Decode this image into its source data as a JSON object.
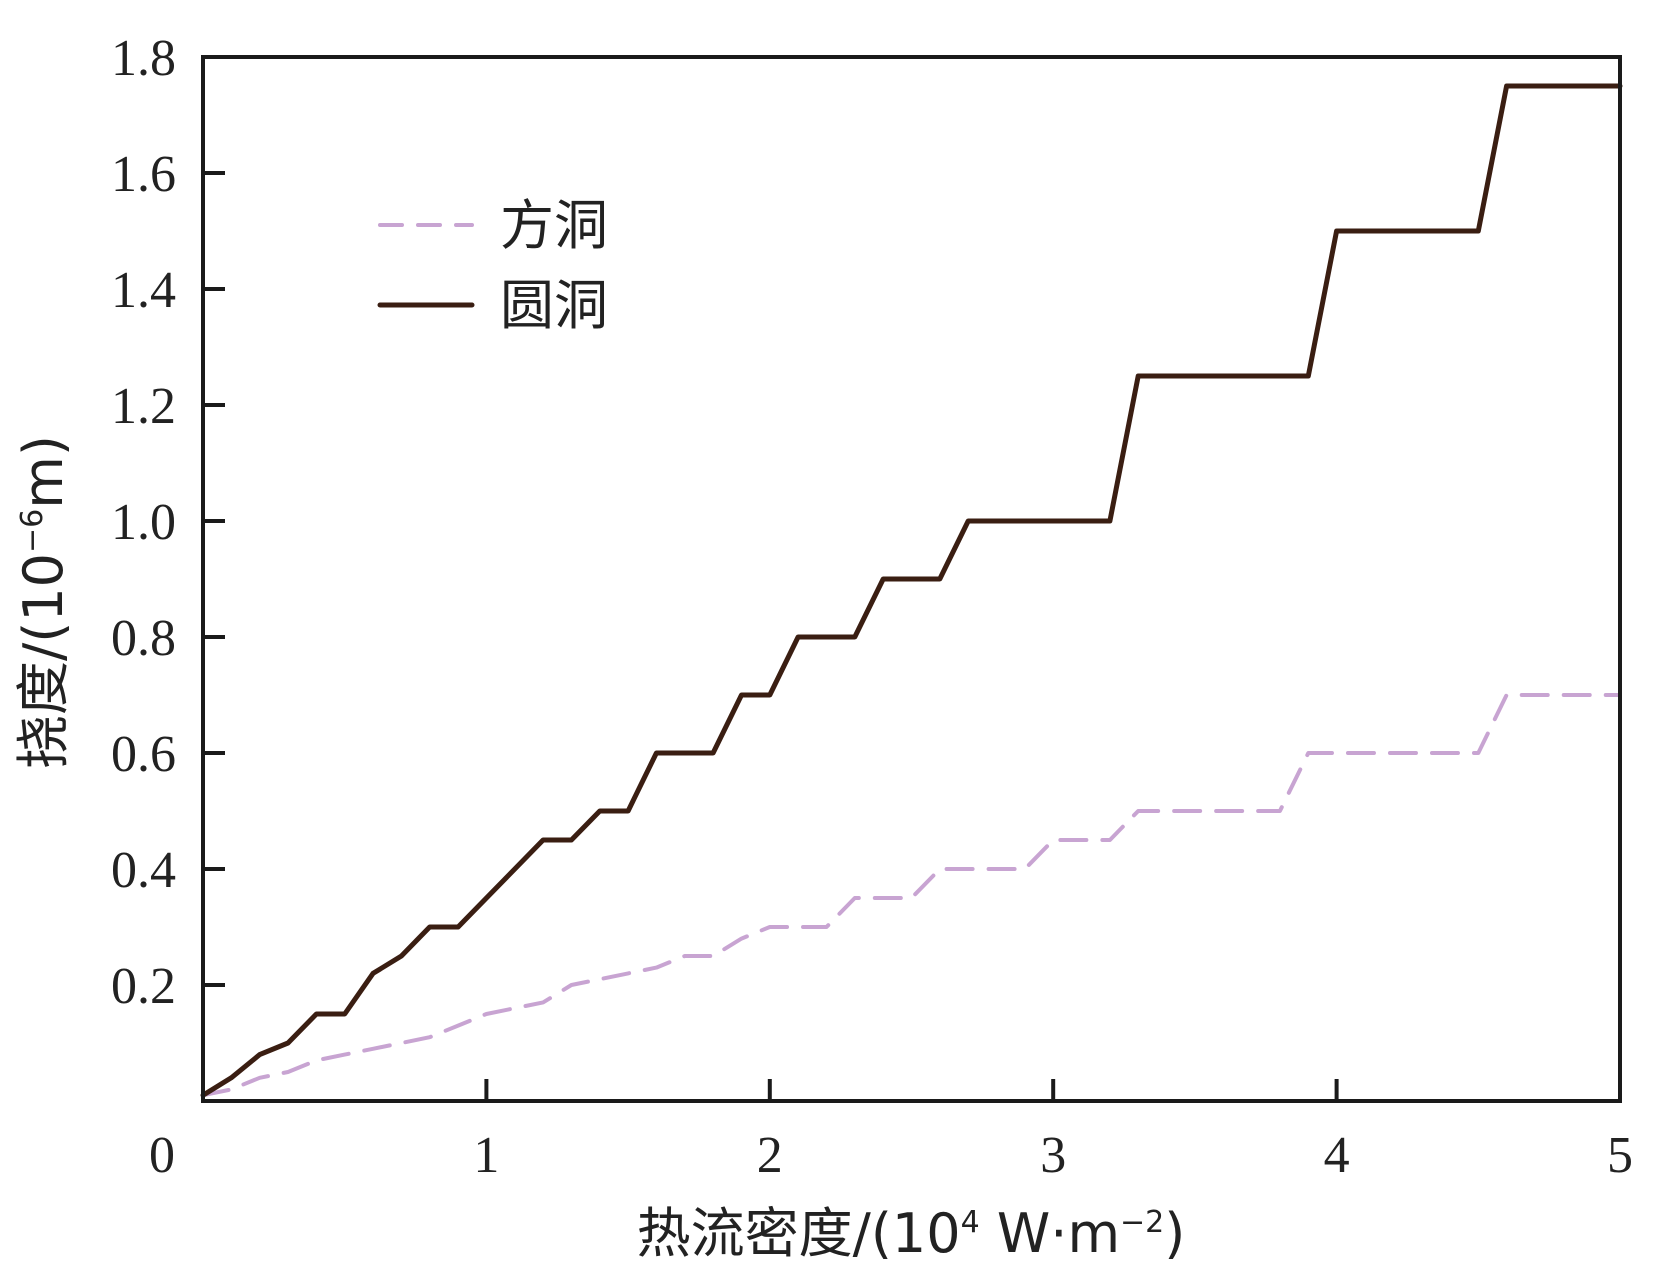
{
  "chart_data": {
    "type": "line",
    "xlabel": {
      "main": "热流密度/(10",
      "exp": "4",
      "unit": " W·m",
      "unit_exp": "−2",
      "close": ")"
    },
    "ylabel": {
      "main": "挠度/(10",
      "exp": "−6",
      "unit": "m)"
    },
    "xlim": [
      0,
      5
    ],
    "ylim": [
      0,
      1.8
    ],
    "x_ticks": [
      "0",
      "1",
      "2",
      "3",
      "4",
      "5"
    ],
    "y_ticks": [
      "0.2",
      "0.4",
      "0.6",
      "0.8",
      "1.0",
      "1.2",
      "1.4",
      "1.6",
      "1.8"
    ],
    "grid": false,
    "legend_position": "top-left",
    "series": [
      {
        "name": "方洞",
        "style": "dashed",
        "color": "#c8a4d2",
        "points": [
          [
            0.0,
            0.01
          ],
          [
            0.1,
            0.02
          ],
          [
            0.2,
            0.04
          ],
          [
            0.3,
            0.05
          ],
          [
            0.4,
            0.07
          ],
          [
            0.5,
            0.08
          ],
          [
            0.6,
            0.09
          ],
          [
            0.7,
            0.1
          ],
          [
            0.8,
            0.11
          ],
          [
            0.9,
            0.13
          ],
          [
            1.0,
            0.15
          ],
          [
            1.2,
            0.17
          ],
          [
            1.3,
            0.2
          ],
          [
            1.4,
            0.21
          ],
          [
            1.5,
            0.22
          ],
          [
            1.6,
            0.23
          ],
          [
            1.7,
            0.25
          ],
          [
            1.8,
            0.25
          ],
          [
            1.9,
            0.28
          ],
          [
            2.0,
            0.3
          ],
          [
            2.2,
            0.3
          ],
          [
            2.3,
            0.35
          ],
          [
            2.5,
            0.35
          ],
          [
            2.6,
            0.4
          ],
          [
            2.9,
            0.4
          ],
          [
            3.0,
            0.45
          ],
          [
            3.2,
            0.45
          ],
          [
            3.3,
            0.5
          ],
          [
            3.8,
            0.5
          ],
          [
            3.9,
            0.6
          ],
          [
            4.5,
            0.6
          ],
          [
            4.6,
            0.7
          ],
          [
            5.0,
            0.7
          ]
        ]
      },
      {
        "name": "圆洞",
        "style": "solid",
        "color": "#3a1e12",
        "points": [
          [
            0.0,
            0.01
          ],
          [
            0.1,
            0.04
          ],
          [
            0.2,
            0.08
          ],
          [
            0.3,
            0.1
          ],
          [
            0.4,
            0.15
          ],
          [
            0.5,
            0.15
          ],
          [
            0.6,
            0.22
          ],
          [
            0.7,
            0.25
          ],
          [
            0.8,
            0.3
          ],
          [
            0.9,
            0.3
          ],
          [
            1.2,
            0.45
          ],
          [
            1.3,
            0.45
          ],
          [
            1.4,
            0.5
          ],
          [
            1.5,
            0.5
          ],
          [
            1.6,
            0.6
          ],
          [
            1.8,
            0.6
          ],
          [
            1.9,
            0.7
          ],
          [
            2.0,
            0.7
          ],
          [
            2.1,
            0.8
          ],
          [
            2.3,
            0.8
          ],
          [
            2.4,
            0.9
          ],
          [
            2.6,
            0.9
          ],
          [
            2.7,
            1.0
          ],
          [
            3.2,
            1.0
          ],
          [
            3.3,
            1.25
          ],
          [
            3.9,
            1.25
          ],
          [
            4.0,
            1.5
          ],
          [
            4.5,
            1.5
          ],
          [
            4.6,
            1.75
          ],
          [
            5.0,
            1.75
          ]
        ]
      }
    ]
  }
}
